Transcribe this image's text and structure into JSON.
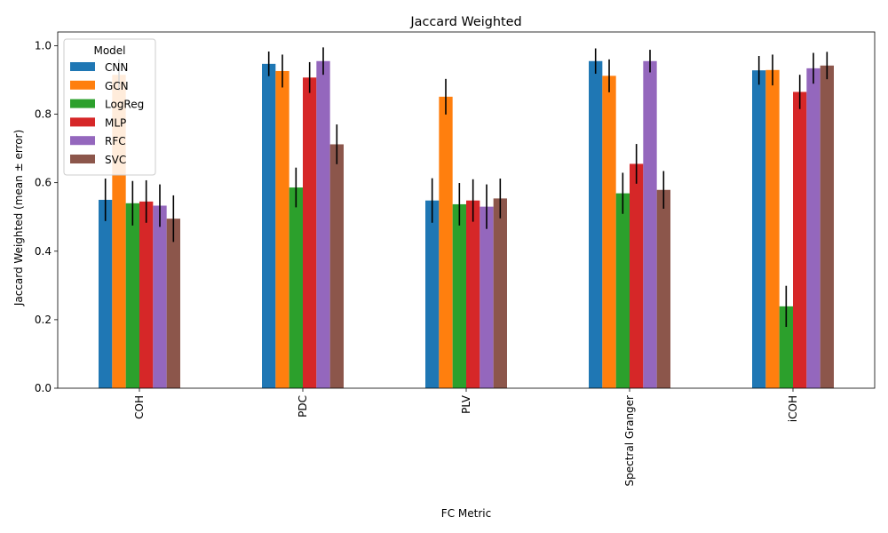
{
  "chart_data": {
    "type": "bar",
    "title": "Jaccard Weighted",
    "xlabel": "FC Metric",
    "ylabel": "Jaccard Weighted (mean ± error)",
    "ylim": [
      0,
      1.04
    ],
    "yticks": [
      "0.0",
      "0.2",
      "0.4",
      "0.6",
      "0.8",
      "1.0"
    ],
    "categories": [
      "COH",
      "PDC",
      "PLV",
      "Spectral Granger",
      "iCOH"
    ],
    "legend": {
      "title": "Model",
      "placement": "upper-left"
    },
    "series": [
      {
        "name": "CNN",
        "color": "#1f77b4",
        "values": [
          0.55,
          0.947,
          0.548,
          0.955,
          0.928
        ],
        "errors": [
          0.062,
          0.036,
          0.065,
          0.037,
          0.042
        ]
      },
      {
        "name": "GCN",
        "color": "#ff7f0e",
        "values": [
          0.915,
          0.926,
          0.851,
          0.912,
          0.929
        ],
        "errors": [
          0.045,
          0.048,
          0.052,
          0.048,
          0.045
        ]
      },
      {
        "name": "LogReg",
        "color": "#2ca02c",
        "values": [
          0.54,
          0.586,
          0.537,
          0.569,
          0.239
        ],
        "errors": [
          0.065,
          0.058,
          0.062,
          0.06,
          0.06
        ]
      },
      {
        "name": "MLP",
        "color": "#d62728",
        "values": [
          0.545,
          0.907,
          0.548,
          0.655,
          0.865
        ],
        "errors": [
          0.062,
          0.045,
          0.062,
          0.058,
          0.05
        ]
      },
      {
        "name": "RFC",
        "color": "#9467bd",
        "values": [
          0.533,
          0.955,
          0.53,
          0.955,
          0.934
        ],
        "errors": [
          0.062,
          0.04,
          0.065,
          0.033,
          0.045
        ]
      },
      {
        "name": "SVC",
        "color": "#8c564b",
        "values": [
          0.495,
          0.712,
          0.554,
          0.579,
          0.942
        ],
        "errors": [
          0.068,
          0.058,
          0.058,
          0.055,
          0.04
        ]
      }
    ]
  }
}
